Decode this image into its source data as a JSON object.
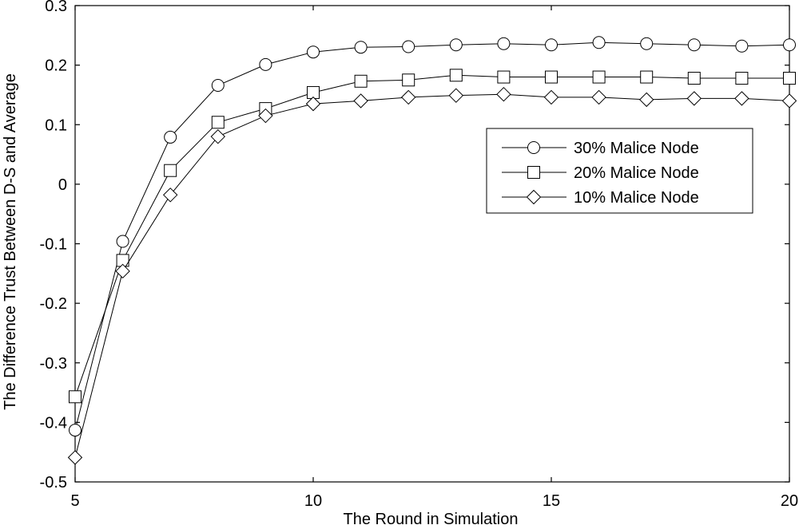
{
  "chart_data": {
    "type": "line",
    "title": "",
    "xlabel": "The Round in Simulation",
    "ylabel": "The Difference Trust Between D-S and Average",
    "xlim": [
      5,
      20
    ],
    "ylim": [
      -0.5,
      0.3
    ],
    "x_ticks": [
      5,
      10,
      15,
      20
    ],
    "y_ticks": [
      -0.5,
      -0.4,
      -0.3,
      -0.2,
      -0.1,
      0,
      0.1,
      0.2,
      0.3
    ],
    "x_tick_labels": [
      "5",
      "10",
      "15",
      "20"
    ],
    "y_tick_labels": [
      "-0.5",
      "-0.4",
      "-0.3",
      "-0.2",
      "-0.1",
      "0",
      "0.1",
      "0.2",
      "0.3"
    ],
    "grid": false,
    "legend_position": "right",
    "line_color": "#000000",
    "x": [
      5,
      6,
      7,
      8,
      9,
      10,
      11,
      12,
      13,
      14,
      15,
      16,
      17,
      18,
      19,
      20
    ],
    "series": [
      {
        "name": "30% Malice Node",
        "marker": "circle",
        "values": [
          -0.413,
          -0.096,
          0.079,
          0.166,
          0.201,
          0.222,
          0.23,
          0.231,
          0.234,
          0.236,
          0.234,
          0.238,
          0.236,
          0.234,
          0.232,
          0.234
        ]
      },
      {
        "name": "20% Malice Node",
        "marker": "square",
        "values": [
          -0.357,
          -0.128,
          0.023,
          0.104,
          0.127,
          0.154,
          0.173,
          0.175,
          0.183,
          0.18,
          0.18,
          0.18,
          0.18,
          0.178,
          0.178,
          0.178
        ]
      },
      {
        "name": "10% Malice Node",
        "marker": "diamond",
        "values": [
          -0.459,
          -0.146,
          -0.018,
          0.08,
          0.115,
          0.135,
          0.14,
          0.146,
          0.149,
          0.151,
          0.146,
          0.146,
          0.142,
          0.144,
          0.144,
          0.14
        ]
      }
    ]
  }
}
